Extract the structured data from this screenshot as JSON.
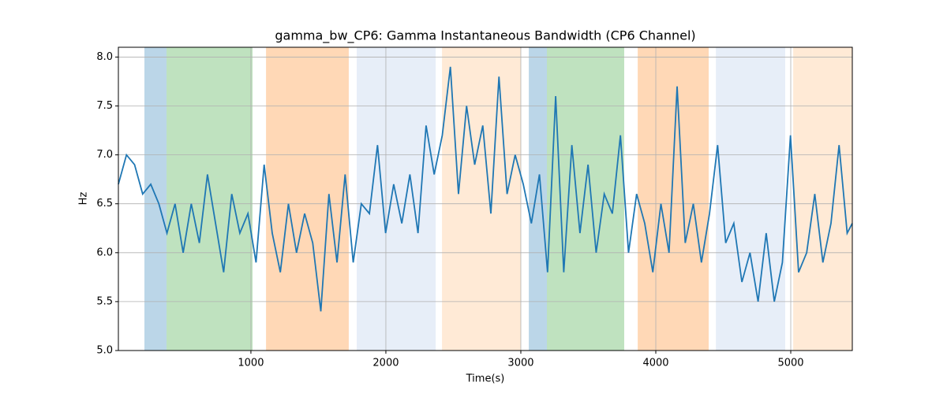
{
  "chart_data": {
    "type": "line",
    "title": "gamma_bw_CP6: Gamma Instantaneous Bandwidth (CP6 Channel)",
    "x_label": "Time(s)",
    "y_label": "Hz",
    "x": [
      18,
      78,
      138,
      198,
      258,
      318,
      378,
      438,
      498,
      558,
      618,
      678,
      738,
      798,
      858,
      918,
      978,
      1038,
      1098,
      1158,
      1218,
      1278,
      1338,
      1398,
      1458,
      1518,
      1578,
      1638,
      1698,
      1758,
      1818,
      1878,
      1938,
      1998,
      2058,
      2118,
      2178,
      2238,
      2298,
      2358,
      2418,
      2478,
      2538,
      2598,
      2658,
      2718,
      2778,
      2838,
      2898,
      2958,
      3018,
      3078,
      3138,
      3198,
      3258,
      3318,
      3378,
      3438,
      3498,
      3558,
      3618,
      3678,
      3738,
      3798,
      3858,
      3918,
      3978,
      4038,
      4098,
      4158,
      4218,
      4278,
      4338,
      4398,
      4458,
      4518,
      4578,
      4638,
      4698,
      4758,
      4818,
      4878,
      4938,
      4998,
      5058,
      5118,
      5178,
      5238,
      5298,
      5358,
      5418,
      5456
    ],
    "series": [
      {
        "color": "#1f77b4",
        "values": [
          6.7,
          7.0,
          6.9,
          6.6,
          6.7,
          6.5,
          6.2,
          6.5,
          6.0,
          6.5,
          6.1,
          6.8,
          6.3,
          5.8,
          6.6,
          6.2,
          6.4,
          5.9,
          6.9,
          6.2,
          5.8,
          6.5,
          6.0,
          6.4,
          6.1,
          5.4,
          6.6,
          5.9,
          6.8,
          5.9,
          6.5,
          6.4,
          7.1,
          6.2,
          6.7,
          6.3,
          6.8,
          6.2,
          7.3,
          6.8,
          7.2,
          7.9,
          6.6,
          7.5,
          6.9,
          7.3,
          6.4,
          7.8,
          6.6,
          7.0,
          6.7,
          6.3,
          6.8,
          5.8,
          7.6,
          5.8,
          7.1,
          6.2,
          6.9,
          6.0,
          6.6,
          6.4,
          7.2,
          6.0,
          6.6,
          6.3,
          5.8,
          6.5,
          6.0,
          7.7,
          6.1,
          6.5,
          5.9,
          6.4,
          7.1,
          6.1,
          6.3,
          5.7,
          6.0,
          5.5,
          6.2,
          5.5,
          5.9,
          7.2,
          5.8,
          6.0,
          6.6,
          5.9,
          6.3,
          7.1,
          6.2,
          6.3
        ]
      }
    ],
    "spans": [
      {
        "x0": 211,
        "x1": 375,
        "color": "#1f77b4",
        "alpha": 0.3
      },
      {
        "x0": 375,
        "x1": 1012,
        "color": "#2ca02c",
        "alpha": 0.3
      },
      {
        "x0": 1112,
        "x1": 1725,
        "color": "#ff7f0e",
        "alpha": 0.3
      },
      {
        "x0": 1784,
        "x1": 2369,
        "color": "#aec7e8",
        "alpha": 0.3
      },
      {
        "x0": 2416,
        "x1": 3000,
        "color": "#ffbb78",
        "alpha": 0.3
      },
      {
        "x0": 3059,
        "x1": 3193,
        "color": "#1f77b4",
        "alpha": 0.3
      },
      {
        "x0": 3193,
        "x1": 3766,
        "color": "#2ca02c",
        "alpha": 0.3
      },
      {
        "x0": 3866,
        "x1": 4392,
        "color": "#ff7f0e",
        "alpha": 0.3
      },
      {
        "x0": 4445,
        "x1": 4959,
        "color": "#aec7e8",
        "alpha": 0.3
      },
      {
        "x0": 5018,
        "x1": 5456,
        "color": "#ffbb78",
        "alpha": 0.3
      }
    ],
    "xlim": [
      18,
      5456
    ],
    "ylim": [
      5.0,
      8.1
    ],
    "xticks": [
      1000,
      2000,
      3000,
      4000,
      5000
    ],
    "yticks": [
      {
        "value": 5,
        "label": "5.0"
      },
      5.5,
      {
        "value": 6,
        "label": "6.0"
      },
      6.5,
      {
        "value": 7,
        "label": "7.0"
      },
      7.5,
      {
        "value": 8,
        "label": "8.0"
      }
    ],
    "grid": true
  }
}
